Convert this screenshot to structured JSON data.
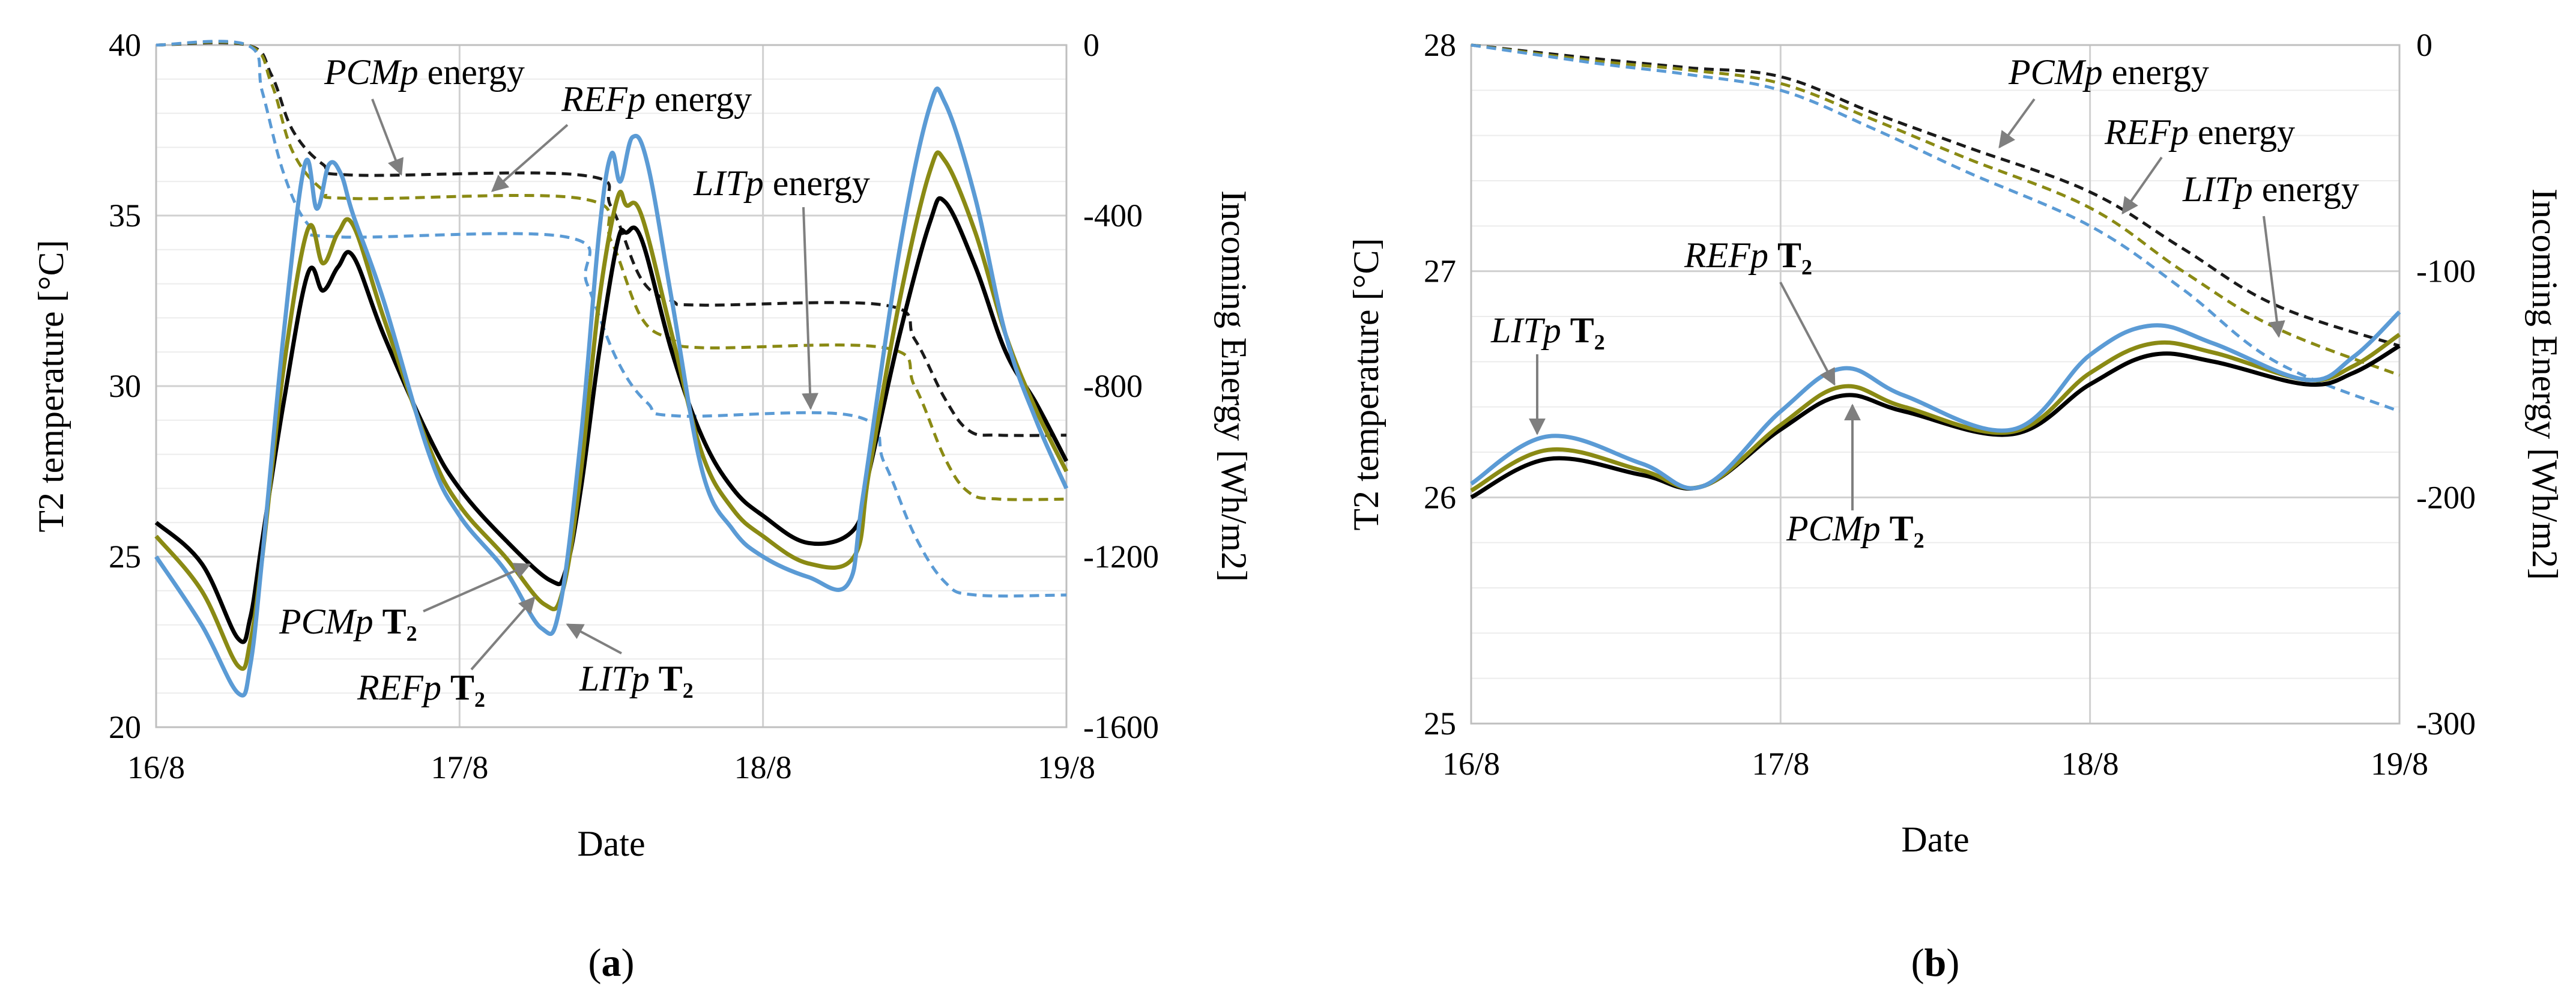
{
  "chart_data": [
    {
      "type": "line",
      "panel": "a",
      "caption_open": "(",
      "caption_label": "a",
      "caption_close": ")",
      "xlabel": "Date",
      "ylabel_left": "T2 temperature [°C]",
      "ylabel_right": "Incoming Energy [Wh/m2]",
      "x_range": [
        0,
        3
      ],
      "x_ticks": [
        0,
        1,
        2,
        3
      ],
      "x_tick_labels": [
        "16/8",
        "17/8",
        "18/8",
        "19/8"
      ],
      "ylim_left": [
        20,
        40
      ],
      "y_ticks_left": [
        20,
        25,
        30,
        35,
        40
      ],
      "ylim_right": [
        -1600,
        0
      ],
      "y_ticks_right": [
        -1600,
        -1200,
        -800,
        -400,
        0
      ],
      "grid": true,
      "series": [
        {
          "name": "PCMp energy",
          "axis": "right",
          "style": "dashed",
          "color": "#1a1a1a",
          "x": [
            0,
            0.3,
            0.38,
            0.45,
            0.55,
            0.65,
            1.4,
            1.5,
            1.6,
            1.7,
            1.8,
            2.4,
            2.5,
            2.6,
            2.68,
            2.78,
            3.0
          ],
          "values": [
            0,
            0,
            -70,
            -200,
            -280,
            -305,
            -305,
            -380,
            -550,
            -600,
            -610,
            -610,
            -690,
            -830,
            -905,
            -915,
            -915
          ]
        },
        {
          "name": "REFp energy",
          "axis": "right",
          "style": "dashed",
          "color": "#8a8a14",
          "x": [
            0,
            0.3,
            0.38,
            0.45,
            0.55,
            0.65,
            1.4,
            1.5,
            1.6,
            1.7,
            1.8,
            2.4,
            2.5,
            2.6,
            2.68,
            2.78,
            3.0
          ],
          "values": [
            0,
            0,
            -90,
            -250,
            -340,
            -360,
            -360,
            -460,
            -640,
            -690,
            -710,
            -710,
            -800,
            -970,
            -1050,
            -1065,
            -1065
          ]
        },
        {
          "name": "LITp energy",
          "axis": "right",
          "style": "dashed",
          "color": "#5b9bd5",
          "x": [
            0,
            0.3,
            0.35,
            0.42,
            0.5,
            0.6,
            1.35,
            1.42,
            1.52,
            1.62,
            1.72,
            2.3,
            2.4,
            2.5,
            2.6,
            2.7,
            3.0
          ],
          "values": [
            0,
            0,
            -110,
            -300,
            -420,
            -450,
            -450,
            -560,
            -740,
            -840,
            -870,
            -870,
            -980,
            -1150,
            -1260,
            -1290,
            -1290
          ]
        },
        {
          "name": "PCMp T2",
          "axis": "left",
          "style": "solid",
          "color": "#000000",
          "x": [
            0,
            0.15,
            0.27,
            0.31,
            0.35,
            0.42,
            0.5,
            0.55,
            0.6,
            0.65,
            0.75,
            0.9,
            1.0,
            1.15,
            1.3,
            1.35,
            1.4,
            1.46,
            1.52,
            1.55,
            1.6,
            1.7,
            1.8,
            1.9,
            2.0,
            2.15,
            2.3,
            2.35,
            2.45,
            2.55,
            2.6,
            2.7,
            2.8,
            2.9,
            3.0
          ],
          "values": [
            26.0,
            24.8,
            22.6,
            23.2,
            25.5,
            29.5,
            33.3,
            32.8,
            33.5,
            33.8,
            31.5,
            28.5,
            27.0,
            25.5,
            24.3,
            24.6,
            27.0,
            31.0,
            34.2,
            34.5,
            34.3,
            31.0,
            28.5,
            27.0,
            26.2,
            25.4,
            25.8,
            27.5,
            31.5,
            34.8,
            35.4,
            33.5,
            31.0,
            29.5,
            27.8
          ]
        },
        {
          "name": "REFp T2",
          "axis": "left",
          "style": "solid",
          "color": "#8a8a14",
          "x": [
            0,
            0.15,
            0.27,
            0.31,
            0.35,
            0.42,
            0.5,
            0.55,
            0.6,
            0.65,
            0.75,
            0.9,
            1.0,
            1.15,
            1.28,
            1.34,
            1.4,
            1.46,
            1.52,
            1.55,
            1.6,
            1.7,
            1.8,
            1.9,
            2.0,
            2.15,
            2.3,
            2.35,
            2.45,
            2.55,
            2.6,
            2.7,
            2.8,
            2.9,
            3.0
          ],
          "values": [
            25.6,
            24.0,
            21.8,
            22.5,
            25.0,
            30.5,
            34.6,
            33.6,
            34.5,
            34.7,
            32.0,
            28.2,
            26.5,
            25.0,
            23.6,
            24.0,
            27.5,
            32.5,
            35.5,
            35.3,
            35.0,
            31.5,
            28.0,
            26.4,
            25.6,
            24.8,
            25.0,
            27.5,
            32.5,
            36.3,
            36.6,
            34.5,
            31.5,
            29.3,
            27.5
          ]
        },
        {
          "name": "LITp T2",
          "axis": "left",
          "style": "solid",
          "color": "#5b9bd5",
          "x": [
            0,
            0.15,
            0.27,
            0.31,
            0.35,
            0.42,
            0.49,
            0.53,
            0.57,
            0.61,
            0.65,
            0.75,
            0.9,
            1.0,
            1.15,
            1.27,
            1.33,
            1.4,
            1.46,
            1.5,
            1.53,
            1.57,
            1.62,
            1.7,
            1.8,
            1.9,
            2.0,
            2.15,
            2.28,
            2.33,
            2.45,
            2.55,
            2.6,
            2.7,
            2.8,
            2.9,
            3.0
          ],
          "values": [
            25.0,
            23.0,
            21.0,
            21.8,
            25.0,
            31.5,
            36.5,
            35.2,
            36.5,
            36.2,
            35.0,
            32.5,
            28.0,
            26.2,
            24.6,
            22.9,
            23.5,
            28.5,
            34.5,
            36.8,
            36.0,
            37.3,
            36.5,
            32.5,
            27.5,
            25.8,
            25.0,
            24.4,
            24.2,
            26.8,
            34.0,
            38.2,
            38.3,
            35.5,
            31.5,
            29.0,
            27.0
          ]
        }
      ],
      "annotations": {
        "pcm_energy": {
          "label": "PCMp",
          "suffix": " energy"
        },
        "ref_energy": {
          "label": "REFp",
          "suffix": " energy"
        },
        "lit_energy": {
          "label": "LITp",
          "suffix": " energy"
        },
        "pcm_t2": {
          "label": "PCMp",
          "suffix": "T₂"
        },
        "ref_t2": {
          "label": "REFp",
          "suffix": "T₂"
        },
        "lit_t2": {
          "label": "LITp",
          "suffix": "T₂"
        }
      }
    },
    {
      "type": "line",
      "panel": "b",
      "caption_open": "(",
      "caption_label": "b",
      "caption_close": ")",
      "xlabel": "Date",
      "ylabel_left": "T2 temperature [°C]",
      "ylabel_right": "Incoming Energy [Wh/m2]",
      "x_range": [
        0,
        3
      ],
      "x_ticks": [
        0,
        1,
        2,
        3
      ],
      "x_tick_labels": [
        "16/8",
        "17/8",
        "18/8",
        "19/8"
      ],
      "ylim_left": [
        25,
        28
      ],
      "y_ticks_left": [
        25,
        26,
        27,
        28
      ],
      "ylim_right": [
        -300,
        0
      ],
      "y_ticks_right": [
        -300,
        -200,
        -100,
        0
      ],
      "grid": true,
      "series": [
        {
          "name": "PCMp energy",
          "axis": "right",
          "style": "dashed",
          "color": "#1a1a1a",
          "x": [
            0,
            0.4,
            0.7,
            1.0,
            1.3,
            1.6,
            2.0,
            2.3,
            2.6,
            3.0
          ],
          "values": [
            0,
            -6,
            -10,
            -14,
            -30,
            -45,
            -65,
            -90,
            -115,
            -133
          ]
        },
        {
          "name": "REFp energy",
          "axis": "right",
          "style": "dashed",
          "color": "#8a8a14",
          "x": [
            0,
            0.4,
            0.7,
            1.0,
            1.3,
            1.6,
            2.0,
            2.3,
            2.6,
            3.0
          ],
          "values": [
            0,
            -7,
            -11,
            -17,
            -33,
            -50,
            -72,
            -100,
            -125,
            -146
          ]
        },
        {
          "name": "LITp energy",
          "axis": "right",
          "style": "dashed",
          "color": "#5b9bd5",
          "x": [
            0,
            0.4,
            0.7,
            1.0,
            1.3,
            1.6,
            2.0,
            2.3,
            2.6,
            3.0
          ],
          "values": [
            0,
            -8,
            -13,
            -20,
            -37,
            -56,
            -80,
            -108,
            -140,
            -162
          ]
        },
        {
          "name": "PCMp T2",
          "axis": "left",
          "style": "solid",
          "color": "#000000",
          "x": [
            0,
            0.25,
            0.55,
            0.75,
            1.0,
            1.2,
            1.4,
            1.75,
            2.0,
            2.2,
            2.4,
            2.7,
            2.85,
            3.0
          ],
          "values": [
            26.0,
            26.17,
            26.1,
            26.05,
            26.3,
            26.45,
            26.38,
            26.28,
            26.5,
            26.63,
            26.6,
            26.5,
            26.55,
            26.67
          ]
        },
        {
          "name": "REFp T2",
          "axis": "left",
          "style": "solid",
          "color": "#8a8a14",
          "x": [
            0,
            0.25,
            0.55,
            0.75,
            1.0,
            1.2,
            1.4,
            1.75,
            2.0,
            2.2,
            2.4,
            2.7,
            2.85,
            3.0
          ],
          "values": [
            26.03,
            26.21,
            26.12,
            26.05,
            26.32,
            26.49,
            26.4,
            26.29,
            26.55,
            26.68,
            26.64,
            26.52,
            26.58,
            26.72
          ]
        },
        {
          "name": "LITp T2",
          "axis": "left",
          "style": "solid",
          "color": "#5b9bd5",
          "x": [
            0,
            0.25,
            0.55,
            0.75,
            1.0,
            1.2,
            1.4,
            1.75,
            2.0,
            2.2,
            2.4,
            2.7,
            2.85,
            3.0
          ],
          "values": [
            26.06,
            26.27,
            26.15,
            26.05,
            26.38,
            26.57,
            26.45,
            26.3,
            26.63,
            26.76,
            26.68,
            26.52,
            26.62,
            26.82
          ]
        }
      ],
      "annotations": {
        "pcm_energy": {
          "label": "PCMp",
          "suffix": " energy"
        },
        "ref_energy": {
          "label": "REFp",
          "suffix": " energy"
        },
        "lit_energy": {
          "label": "LITp",
          "suffix": " energy"
        },
        "pcm_t2": {
          "label": "PCMp",
          "suffix": "T₂"
        },
        "ref_t2": {
          "label": "REFp",
          "suffix": "T₂"
        },
        "lit_t2": {
          "label": "LITp",
          "suffix": "T₂"
        }
      }
    }
  ]
}
